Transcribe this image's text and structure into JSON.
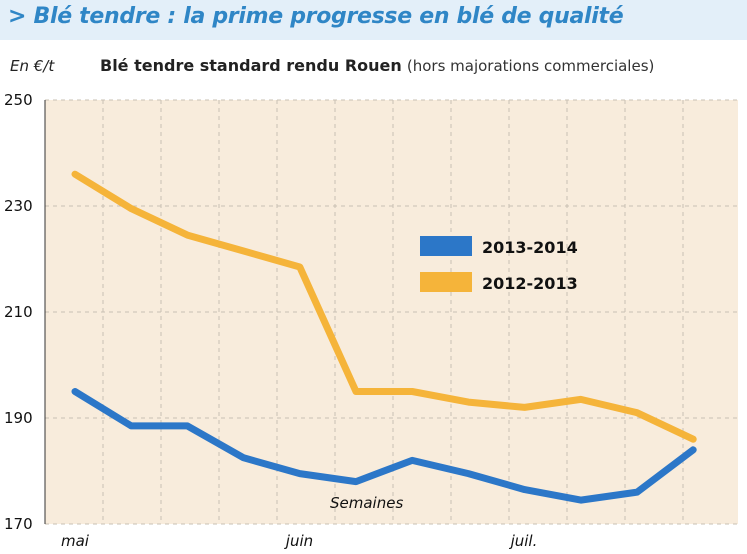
{
  "header": {
    "title": "> Blé tendre : la prime progresse en blé de qualité",
    "unit": "En €/t",
    "subtitle_main": "Blé tendre standard rendu Rouen",
    "subtitle_note": "(hors majorations commerciales)"
  },
  "colors": {
    "title": "#2f86c6",
    "title_band": "#e3eff9",
    "plot_background": "#f8ecdc",
    "series_2013_2014": "#2c77c8",
    "series_2012_2013": "#f5b43a"
  },
  "chart_data": {
    "type": "line",
    "xlabel": "Semaines",
    "ylabel": "En €/t",
    "ylim": [
      170,
      250
    ],
    "y_ticks": [
      170,
      190,
      210,
      230,
      250
    ],
    "x_tick_labels": [
      {
        "label": "mai",
        "week": 0
      },
      {
        "label": "juin",
        "week": 4
      },
      {
        "label": "juil.",
        "week": 8
      }
    ],
    "x": [
      0,
      1,
      2,
      3,
      4,
      5,
      6,
      7,
      8,
      9,
      10,
      11
    ],
    "grid": true,
    "legend_position": "center-right",
    "series": [
      {
        "name": "2013-2014",
        "color": "#2c77c8",
        "values": [
          195,
          188.5,
          188.5,
          182.5,
          179.5,
          178,
          182,
          179.5,
          176.5,
          174.5,
          176,
          184
        ]
      },
      {
        "name": "2012-2013",
        "color": "#f5b43a",
        "values": [
          236,
          229.5,
          224.5,
          221.5,
          218.5,
          195,
          195,
          193,
          192,
          193.5,
          191,
          186
        ]
      }
    ]
  }
}
